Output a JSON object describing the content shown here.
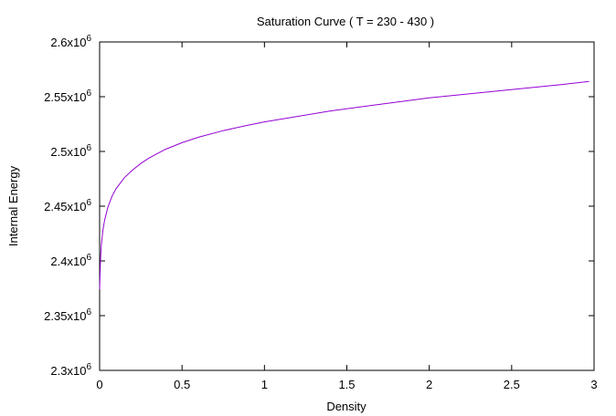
{
  "chart_data": {
    "type": "line",
    "title": "Saturation Curve ( T = 230 - 430 )",
    "xlabel": "Density",
    "ylabel": "Internal Energy",
    "xlim": [
      0,
      3
    ],
    "ylim": [
      2300000,
      2600000
    ],
    "x_ticks": [
      0,
      0.5,
      1,
      1.5,
      2,
      2.5,
      3
    ],
    "x_tick_labels": [
      "0",
      "0.5",
      "1",
      "1.5",
      "2",
      "2.5",
      "3"
    ],
    "y_ticks": [
      2300000,
      2350000,
      2400000,
      2450000,
      2500000,
      2550000,
      2600000
    ],
    "y_tick_labels": [
      {
        "mantissa": "2.3x10",
        "exp": "6"
      },
      {
        "mantissa": "2.35x10",
        "exp": "6"
      },
      {
        "mantissa": "2.4x10",
        "exp": "6"
      },
      {
        "mantissa": "2.45x10",
        "exp": "6"
      },
      {
        "mantissa": "2.5x10",
        "exp": "6"
      },
      {
        "mantissa": "2.55x10",
        "exp": "6"
      },
      {
        "mantissa": "2.6x10",
        "exp": "6"
      }
    ],
    "grid": false,
    "series": [
      {
        "color": "#9400d3",
        "x": [
          0.0,
          0.005,
          0.01,
          0.02,
          0.03,
          0.05,
          0.075,
          0.1,
          0.15,
          0.2,
          0.25,
          0.3,
          0.4,
          0.5,
          0.6,
          0.75,
          0.9,
          1.0,
          1.2,
          1.4,
          1.6,
          1.8,
          2.0,
          2.2,
          2.4,
          2.6,
          2.8,
          2.97
        ],
        "y": [
          2374000,
          2400000,
          2414000,
          2428000,
          2437000,
          2449000,
          2459000,
          2466000,
          2476000,
          2483000,
          2489000,
          2494000,
          2502000,
          2508000,
          2513000,
          2519000,
          2524000,
          2527000,
          2532000,
          2537000,
          2541000,
          2545000,
          2549000,
          2552000,
          2555000,
          2558000,
          2561000,
          2564000
        ]
      }
    ]
  }
}
